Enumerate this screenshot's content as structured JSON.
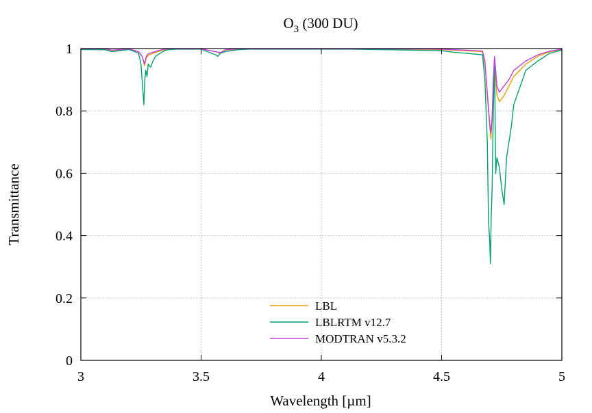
{
  "chart_data": {
    "type": "line",
    "title": {
      "main": "O",
      "sub": "3",
      "rest": " (300 DU)"
    },
    "xlabel": "Wavelength  [µm]",
    "ylabel": "Transmittance",
    "xlim": [
      3,
      5
    ],
    "ylim": [
      0,
      1
    ],
    "xticks": [
      3,
      3.5,
      4,
      4.5,
      5
    ],
    "xtick_labels": [
      "3",
      "3.5",
      "4",
      "4.5",
      "5"
    ],
    "yticks": [
      0,
      0.2,
      0.4,
      0.6,
      0.8,
      1
    ],
    "ytick_labels": [
      "0",
      "0.2",
      "0.4",
      "0.6",
      "0.8",
      "1"
    ],
    "grid": true,
    "legend_position": "bottom-center",
    "series": [
      {
        "name": "LBL",
        "color": "#E69F00",
        "x": [
          3.0,
          3.1,
          3.13,
          3.2,
          3.24,
          3.255,
          3.265,
          3.272,
          3.28,
          3.3,
          3.32,
          3.34,
          3.36,
          3.4,
          3.5,
          3.56,
          3.58,
          3.6,
          3.65,
          3.7,
          3.9,
          4.1,
          4.3,
          4.5,
          4.6,
          4.67,
          4.68,
          4.69,
          4.7,
          4.705,
          4.71,
          4.715,
          4.72,
          4.725,
          4.73,
          4.74,
          4.76,
          4.78,
          4.8,
          4.85,
          4.9,
          4.95,
          5.0
        ],
        "y": [
          0.998,
          0.998,
          0.994,
          0.998,
          0.99,
          0.975,
          0.945,
          0.97,
          0.978,
          0.985,
          0.99,
          0.995,
          0.998,
          0.999,
          0.999,
          0.99,
          0.985,
          0.995,
          0.998,
          0.999,
          0.999,
          0.999,
          0.998,
          0.997,
          0.993,
          0.99,
          0.95,
          0.85,
          0.75,
          0.71,
          0.77,
          0.88,
          0.97,
          0.9,
          0.85,
          0.83,
          0.85,
          0.88,
          0.91,
          0.95,
          0.975,
          0.99,
          0.997
        ]
      },
      {
        "name": "LBLRTM v12.7",
        "color": "#009E73",
        "x": [
          3.0,
          3.1,
          3.13,
          3.2,
          3.24,
          3.25,
          3.262,
          3.266,
          3.27,
          3.275,
          3.28,
          3.29,
          3.3,
          3.31,
          3.32,
          3.34,
          3.36,
          3.4,
          3.5,
          3.56,
          3.57,
          3.58,
          3.6,
          3.65,
          3.7,
          3.9,
          4.1,
          4.3,
          4.5,
          4.55,
          4.6,
          4.67,
          4.68,
          4.69,
          4.695,
          4.7,
          4.703,
          4.706,
          4.71,
          4.715,
          4.72,
          4.725,
          4.73,
          4.74,
          4.75,
          4.76,
          4.77,
          4.78,
          4.79,
          4.8,
          4.85,
          4.9,
          4.95,
          5.0
        ],
        "y": [
          0.997,
          0.996,
          0.99,
          0.997,
          0.985,
          0.95,
          0.82,
          0.9,
          0.93,
          0.91,
          0.95,
          0.94,
          0.96,
          0.975,
          0.98,
          0.99,
          0.996,
          0.998,
          0.998,
          0.98,
          0.975,
          0.985,
          0.99,
          0.996,
          0.998,
          0.998,
          0.998,
          0.996,
          0.993,
          0.988,
          0.985,
          0.98,
          0.9,
          0.7,
          0.45,
          0.38,
          0.31,
          0.45,
          0.55,
          0.8,
          0.96,
          0.6,
          0.65,
          0.62,
          0.55,
          0.5,
          0.65,
          0.7,
          0.75,
          0.82,
          0.93,
          0.96,
          0.985,
          0.995
        ]
      },
      {
        "name": "MODTRAN v5.3.2",
        "color": "#C040E0",
        "x": [
          3.0,
          3.1,
          3.13,
          3.2,
          3.24,
          3.255,
          3.265,
          3.272,
          3.28,
          3.3,
          3.32,
          3.34,
          3.36,
          3.4,
          3.5,
          3.56,
          3.58,
          3.6,
          3.65,
          3.7,
          3.9,
          4.1,
          4.3,
          4.5,
          4.6,
          4.67,
          4.68,
          4.69,
          4.7,
          4.705,
          4.71,
          4.715,
          4.72,
          4.725,
          4.73,
          4.74,
          4.76,
          4.78,
          4.8,
          4.85,
          4.9,
          4.95,
          5.0
        ],
        "y": [
          0.999,
          0.999,
          0.995,
          0.999,
          0.99,
          0.975,
          0.95,
          0.975,
          0.983,
          0.988,
          0.993,
          0.997,
          0.999,
          0.999,
          0.999,
          0.99,
          0.987,
          0.996,
          0.999,
          0.999,
          0.999,
          0.999,
          0.999,
          0.998,
          0.995,
          0.992,
          0.96,
          0.86,
          0.76,
          0.73,
          0.78,
          0.9,
          0.975,
          0.93,
          0.88,
          0.86,
          0.88,
          0.9,
          0.93,
          0.96,
          0.98,
          0.992,
          0.998
        ]
      }
    ]
  }
}
